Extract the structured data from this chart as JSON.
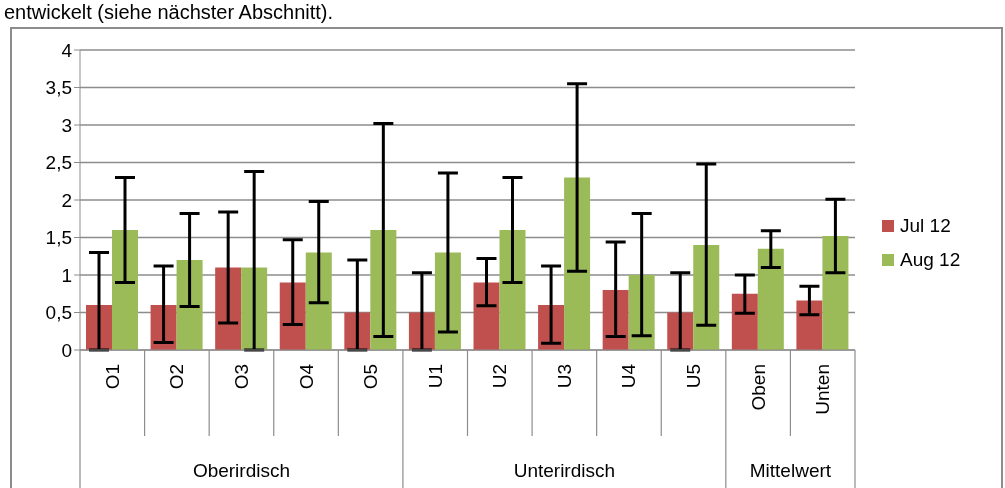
{
  "chart_data": {
    "type": "bar",
    "categories": [
      "O1",
      "O2",
      "O3",
      "O4",
      "O5",
      "U1",
      "U2",
      "U3",
      "U4",
      "U5",
      "Oben",
      "Unten"
    ],
    "series": [
      {
        "name": "Jul 12",
        "color": "#c0504d",
        "values": [
          0.6,
          0.6,
          1.1,
          0.9,
          0.5,
          0.5,
          0.9,
          0.6,
          0.8,
          0.5,
          0.75,
          0.66
        ],
        "errors": [
          [
            0,
            1.3
          ],
          [
            0.1,
            1.12
          ],
          [
            0.36,
            1.84
          ],
          [
            0.34,
            1.47
          ],
          [
            0,
            1.2
          ],
          [
            0,
            1.03
          ],
          [
            0.59,
            1.22
          ],
          [
            0.09,
            1.12
          ],
          [
            0.18,
            1.44
          ],
          [
            0,
            1.03
          ],
          [
            0.49,
            1.0
          ],
          [
            0.47,
            0.85
          ]
        ]
      },
      {
        "name": "Aug 12",
        "color": "#9bbb59",
        "values": [
          1.6,
          1.2,
          1.1,
          1.3,
          1.6,
          1.3,
          1.6,
          2.3,
          1.0,
          1.4,
          1.35,
          1.52
        ],
        "errors": [
          [
            0.9,
            2.3
          ],
          [
            0.58,
            1.82
          ],
          [
            0,
            2.38
          ],
          [
            0.63,
            1.98
          ],
          [
            0.18,
            3.02
          ],
          [
            0.24,
            2.36
          ],
          [
            0.9,
            2.3
          ],
          [
            1.05,
            3.55
          ],
          [
            0.19,
            1.82
          ],
          [
            0.33,
            2.48
          ],
          [
            1.1,
            1.59
          ],
          [
            1.03,
            2.01
          ]
        ]
      }
    ],
    "ylim": [
      0,
      4
    ],
    "yticks": [
      0,
      {
        "value": 0.5,
        "label": "0,5"
      },
      1,
      {
        "value": 1.5,
        "label": "1,5"
      },
      2,
      {
        "value": 2.5,
        "label": "2,5"
      },
      3,
      {
        "value": 3.5,
        "label": "3,5"
      },
      4
    ],
    "grid": "y",
    "legend": "right",
    "annotations": [
      "entwickelt (siehe nächster Abschnitt).",
      "Oberirdisch",
      "Unterirdisch",
      "Mittelwert"
    ]
  }
}
